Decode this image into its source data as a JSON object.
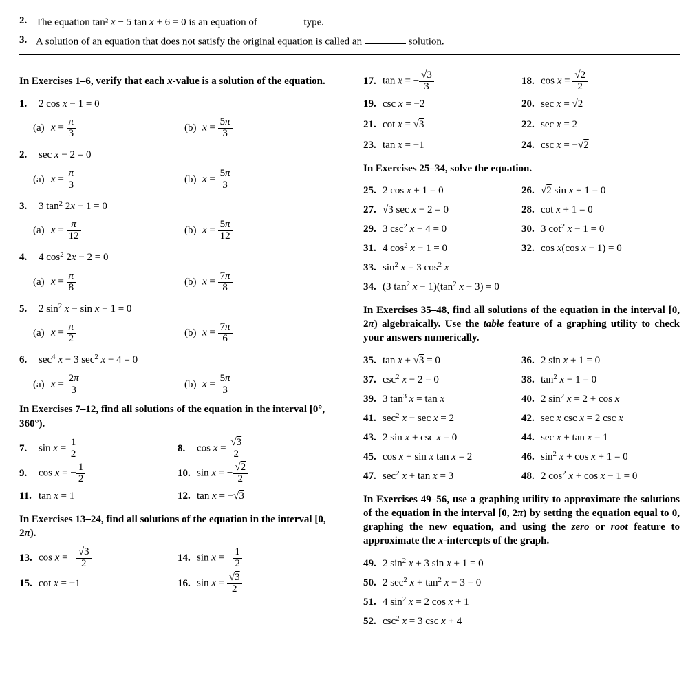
{
  "intro": {
    "q2": {
      "num": "2.",
      "pre": "The equation tan² ",
      "var": "x",
      "mid1": " − 5 tan ",
      "mid2": " + 6 = 0 is an equation of ",
      "post": " type."
    },
    "q3": {
      "num": "3.",
      "pre": "A solution of an equation that does not satisfy the original equation is called an ",
      "post": " solution."
    }
  },
  "left": {
    "head1": {
      "a": "In Exercises 1–6, verify that each ",
      "b": "x",
      "c": "-value is a solution of the equation."
    },
    "e1": {
      "num": "1.",
      "eq": "2 cos x − 1 = 0",
      "a": "x = π/3",
      "b": "x = 5π/3"
    },
    "e2": {
      "num": "2.",
      "eq": "sec x − 2 = 0",
      "a": "x = π/3",
      "b": "x = 5π/3"
    },
    "e3": {
      "num": "3.",
      "eq": "3 tan² 2x − 1 = 0",
      "a": "x = π/12",
      "b": "x = 5π/12"
    },
    "e4": {
      "num": "4.",
      "eq": "4 cos² 2x − 2 = 0",
      "a": "x = π/8",
      "b": "x = 7π/8"
    },
    "e5": {
      "num": "5.",
      "eq": "2 sin² x − sin x − 1 = 0",
      "a": "x = π/2",
      "b": "x = 7π/6"
    },
    "e6": {
      "num": "6.",
      "eq": "sec⁴ x − 3 sec² x − 4 = 0",
      "a": "x = 2π/3",
      "b": "x = 5π/3"
    },
    "head7": "In Exercises 7–12, find all solutions of the equation in the interval [0°, 360°).",
    "e7": {
      "num": "7.",
      "eq": "sin x = 1/2"
    },
    "e8": {
      "num": "8.",
      "eq": "cos x = √3/2"
    },
    "e9": {
      "num": "9.",
      "eq": "cos x = −1/2"
    },
    "e10": {
      "num": "10.",
      "eq": "sin x = −√2/2"
    },
    "e11": {
      "num": "11.",
      "eq": "tan x = 1"
    },
    "e12": {
      "num": "12.",
      "eq": "tan x = −√3"
    },
    "head13": {
      "a": "In Exercises 13–24, find all solutions of the equation in the interval [0, 2",
      "b": "π",
      "c": ")."
    },
    "e13": {
      "num": "13.",
      "eq": "cos x = −√3/2"
    },
    "e14": {
      "num": "14.",
      "eq": "sin x = −1/2"
    },
    "e15": {
      "num": "15.",
      "eq": "cot x = −1"
    },
    "e16": {
      "num": "16.",
      "eq": "sin x = √3/2"
    }
  },
  "right": {
    "e17": {
      "num": "17.",
      "eq": "tan x = −√3/3"
    },
    "e18": {
      "num": "18.",
      "eq": "cos x = √2/2"
    },
    "e19": {
      "num": "19.",
      "eq": "csc x = −2"
    },
    "e20": {
      "num": "20.",
      "eq": "sec x = √2"
    },
    "e21": {
      "num": "21.",
      "eq": "cot x = √3"
    },
    "e22": {
      "num": "22.",
      "eq": "sec x = 2"
    },
    "e23": {
      "num": "23.",
      "eq": "tan x = −1"
    },
    "e24": {
      "num": "24.",
      "eq": "csc x = −√2"
    },
    "head25": "In Exercises 25–34, solve the equation.",
    "e25": {
      "num": "25.",
      "eq": "2 cos x + 1 = 0"
    },
    "e26": {
      "num": "26.",
      "eq": "√2 sin x + 1 = 0"
    },
    "e27": {
      "num": "27.",
      "eq": "√3 sec x − 2 = 0"
    },
    "e28": {
      "num": "28.",
      "eq": "cot x + 1 = 0"
    },
    "e29": {
      "num": "29.",
      "eq": "3 csc² x − 4 = 0"
    },
    "e30": {
      "num": "30.",
      "eq": "3 cot² x − 1 = 0"
    },
    "e31": {
      "num": "31.",
      "eq": "4 cos² x − 1 = 0"
    },
    "e32": {
      "num": "32.",
      "eq": "cos x(cos x − 1) = 0"
    },
    "e33": {
      "num": "33.",
      "eq": "sin² x = 3 cos² x"
    },
    "e34": {
      "num": "34.",
      "eq": "(3 tan² x − 1)(tan² x − 3) = 0"
    },
    "head35": {
      "a": "In Exercises 35–48, find all solutions of the equation in the interval [0, 2",
      "b": "π",
      "c": ") algebraically. Use the ",
      "d": "table",
      "e": " feature of a graphing utility to check your answers numerically."
    },
    "e35": {
      "num": "35.",
      "eq": "tan x + √3 = 0"
    },
    "e36": {
      "num": "36.",
      "eq": "2 sin x + 1 = 0"
    },
    "e37": {
      "num": "37.",
      "eq": "csc² x − 2 = 0"
    },
    "e38": {
      "num": "38.",
      "eq": "tan² x − 1 = 0"
    },
    "e39": {
      "num": "39.",
      "eq": "3 tan³ x = tan x"
    },
    "e40": {
      "num": "40.",
      "eq": "2 sin² x = 2 + cos x"
    },
    "e41": {
      "num": "41.",
      "eq": "sec² x − sec x = 2"
    },
    "e42": {
      "num": "42.",
      "eq": "sec x csc x = 2 csc x"
    },
    "e43": {
      "num": "43.",
      "eq": "2 sin x + csc x = 0"
    },
    "e44": {
      "num": "44.",
      "eq": "sec x + tan x = 1"
    },
    "e45": {
      "num": "45.",
      "eq": "cos x + sin x tan x = 2"
    },
    "e46": {
      "num": "46.",
      "eq": "sin² x + cos x + 1 = 0"
    },
    "e47": {
      "num": "47.",
      "eq": "sec² x + tan x = 3"
    },
    "e48": {
      "num": "48.",
      "eq": "2 cos² x + cos x − 1 = 0"
    },
    "head49": {
      "a": "In Exercises 49–56, use a graphing utility to approximate the solutions of the equation in the interval [0, 2",
      "b": "π",
      "c": ") by setting the equation equal to 0, graphing the new equation, and using the ",
      "d": "zero",
      "e": " or ",
      "f": "root",
      "g": " feature to approximate the ",
      "h": "x",
      "i": "-intercepts of the graph."
    },
    "e49": {
      "num": "49.",
      "eq": "2 sin² x + 3 sin x + 1 = 0"
    },
    "e50": {
      "num": "50.",
      "eq": "2 sec² x + tan² x − 3 = 0"
    },
    "e51": {
      "num": "51.",
      "eq": "4 sin² x = 2 cos x + 1"
    },
    "e52": {
      "num": "52.",
      "eq": "csc² x = 3 csc x + 4"
    }
  },
  "labels": {
    "a": "(a)",
    "b": "(b)"
  }
}
